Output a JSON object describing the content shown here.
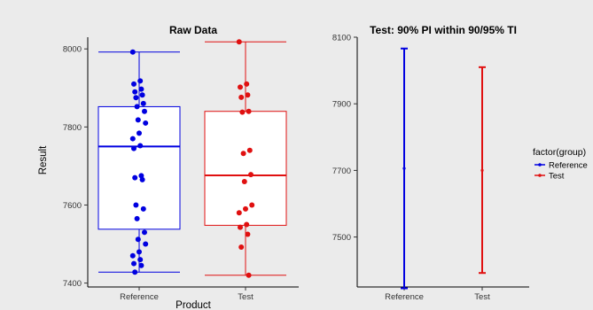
{
  "colors": {
    "background": "#ebebeb",
    "reference": "#0000e0",
    "test": "#e01010"
  },
  "chart_data": [
    {
      "type": "boxplot",
      "title": "Raw Data",
      "xlabel": "Product",
      "ylabel": "Result",
      "categories": [
        "Reference",
        "Test"
      ],
      "ylim": [
        7390,
        8030
      ],
      "yticks": [
        7400,
        7600,
        7800,
        8000
      ],
      "grid": false,
      "boxes": [
        {
          "group": "Reference",
          "whisker_low": 7428,
          "q1": 7538,
          "median": 7750,
          "q3": 7852,
          "whisker_high": 7992
        },
        {
          "group": "Test",
          "whisker_low": 7420,
          "q1": 7548,
          "median": 7676,
          "q3": 7840,
          "whisker_high": 8018
        }
      ],
      "points": [
        {
          "group": "Reference",
          "values": [
            7992,
            7918,
            7910,
            7897,
            7890,
            7882,
            7875,
            7860,
            7852,
            7840,
            7818,
            7810,
            7784,
            7770,
            7752,
            7745,
            7675,
            7670,
            7665,
            7600,
            7590,
            7565,
            7530,
            7512,
            7500,
            7480,
            7470,
            7460,
            7450,
            7445,
            7428
          ]
        },
        {
          "group": "Test",
          "values": [
            8018,
            7910,
            7902,
            7882,
            7876,
            7840,
            7838,
            7740,
            7732,
            7678,
            7660,
            7600,
            7590,
            7580,
            7550,
            7543,
            7525,
            7492,
            7420
          ]
        }
      ]
    },
    {
      "type": "errorbar",
      "title": "Test: 90% PI within 90/95% TI",
      "xlabel": "",
      "ylabel": "",
      "categories": [
        "Reference",
        "Test"
      ],
      "ylim": [
        7350,
        8100
      ],
      "yticks": [
        7500,
        7700,
        7900,
        8100
      ],
      "grid": false,
      "legend": {
        "title": "factor(group)",
        "entries": [
          "Reference",
          "Test"
        ],
        "placement": "right"
      },
      "series": [
        {
          "name": "Reference",
          "center": 7706,
          "lower": 7346,
          "upper": 8066
        },
        {
          "name": "Test",
          "center": 7700,
          "lower": 7392,
          "upper": 8010
        }
      ]
    }
  ]
}
